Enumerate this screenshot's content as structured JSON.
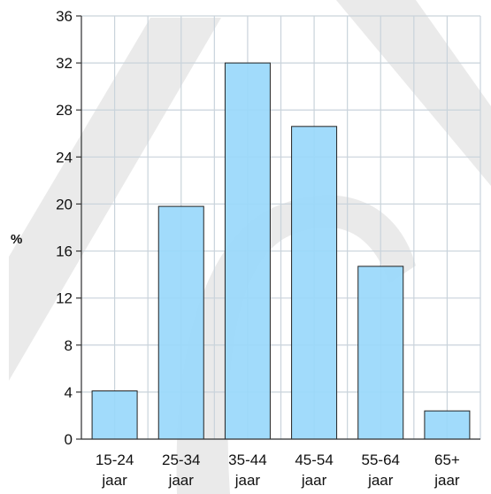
{
  "chart_data": {
    "type": "bar",
    "title": "",
    "ylabel": "%",
    "xlabel": "",
    "categories": [
      [
        "15-24",
        "jaar"
      ],
      [
        "25-34",
        "jaar"
      ],
      [
        "35-44",
        "jaar"
      ],
      [
        "45-54",
        "jaar"
      ],
      [
        "55-64",
        "jaar"
      ],
      [
        "65+",
        "jaar"
      ]
    ],
    "values": [
      4.1,
      19.8,
      32.0,
      26.6,
      14.7,
      2.4
    ],
    "ylim": [
      0,
      36
    ],
    "yticks": [
      "0",
      "4",
      "8",
      "12",
      "16",
      "20",
      "24",
      "28",
      "32",
      "36"
    ],
    "grid": true,
    "colors": {
      "bar_fill": "#99d8fb",
      "bar_stroke": "#222222",
      "grid": "#c9d3db",
      "watermark": "#d9d9d9"
    }
  }
}
